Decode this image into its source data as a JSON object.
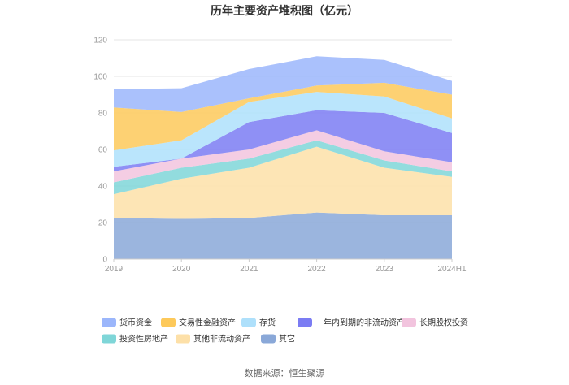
{
  "chart_data": {
    "type": "area",
    "stacked": true,
    "title": "历年主要资产堆积图（亿元）",
    "xlabel": "",
    "ylabel": "",
    "categories": [
      "2019",
      "2020",
      "2021",
      "2022",
      "2023",
      "2024H1"
    ],
    "ylim": [
      0,
      120
    ],
    "yticks": [
      0,
      20,
      40,
      60,
      80,
      100,
      120
    ],
    "grid": true,
    "legend_position": "bottom",
    "series": [
      {
        "name": "其它",
        "color": "#8aa8d8",
        "values": [
          22.5,
          22,
          22.5,
          25.5,
          24,
          24
        ]
      },
      {
        "name": "其他非流动资产",
        "color": "#fde0a8",
        "values": [
          13,
          22,
          27.5,
          36,
          26,
          21
        ]
      },
      {
        "name": "投资性房地产",
        "color": "#7fd6d8",
        "values": [
          6.5,
          6,
          5,
          3.5,
          4,
          3
        ]
      },
      {
        "name": "长期股权投资",
        "color": "#f2c4de",
        "values": [
          6,
          5,
          5,
          5.5,
          5,
          5
        ]
      },
      {
        "name": "一年内到期的非流动资产",
        "color": "#7b7cf3",
        "values": [
          2.5,
          0,
          15,
          11,
          21,
          16
        ]
      },
      {
        "name": "存货",
        "color": "#aee0fb",
        "values": [
          9,
          10,
          11,
          10,
          9,
          8
        ]
      },
      {
        "name": "交易性金融资产",
        "color": "#fdc95a",
        "values": [
          23.5,
          15.5,
          2,
          3.5,
          7.5,
          13
        ]
      },
      {
        "name": "货币资金",
        "color": "#9bb6fb",
        "values": [
          10,
          13,
          16,
          16,
          12.5,
          7.5
        ]
      }
    ],
    "legend_order": [
      "货币资金",
      "交易性金融资产",
      "存货",
      "一年内到期的非流动资产",
      "长期股权投资",
      "投资性房地产",
      "其他非流动资产",
      "其它"
    ],
    "source": "数据来源：恒生聚源"
  }
}
